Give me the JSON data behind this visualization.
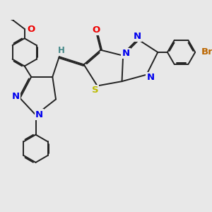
{
  "bg_color": "#e8e8e8",
  "bond_color": "#222222",
  "bond_lw": 1.4,
  "atom_colors": {
    "N": "#0000ee",
    "O": "#ee0000",
    "S": "#bbbb00",
    "Br": "#bb6600",
    "H": "#448888",
    "C": "#222222"
  }
}
